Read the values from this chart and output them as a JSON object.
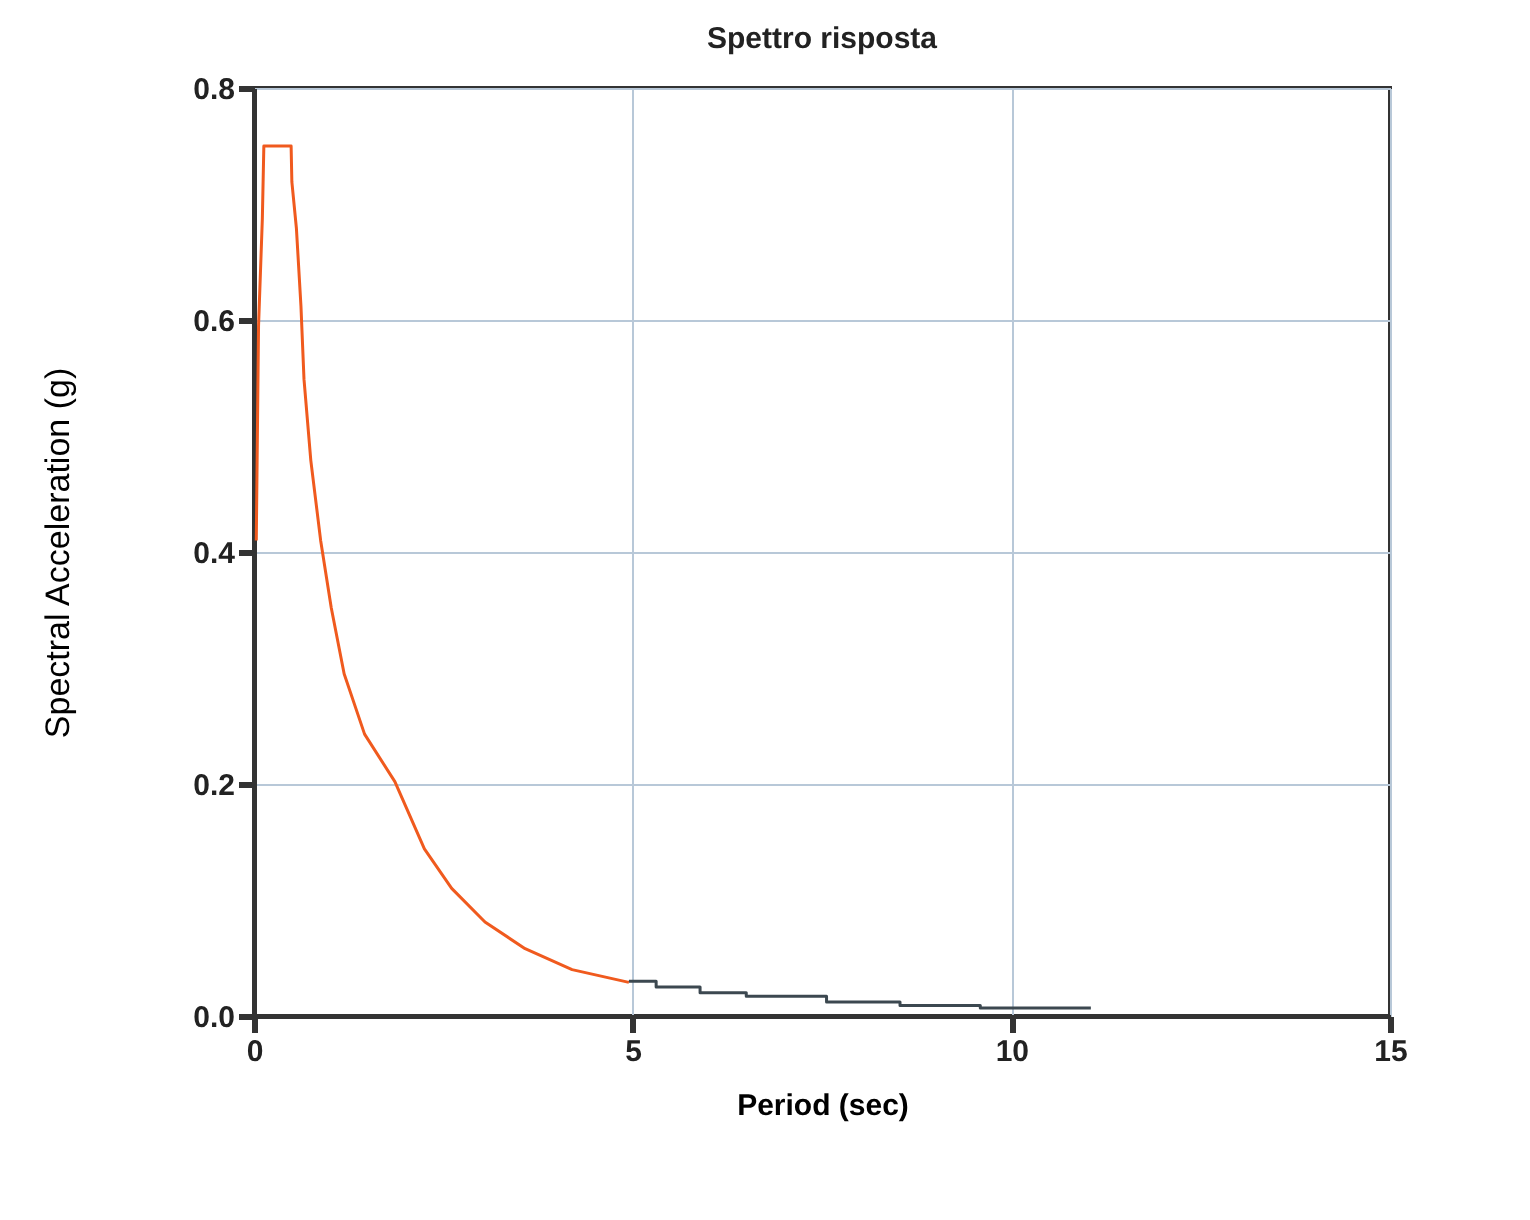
{
  "chart_data": {
    "type": "line",
    "title": "Spettro risposta",
    "xlabel": "Period (sec)",
    "ylabel": "Spectral Acceleration (g)",
    "xlim": [
      0,
      15
    ],
    "ylim": [
      0,
      0.8
    ],
    "xticks": [
      0,
      5,
      10,
      15
    ],
    "yticks": [
      {
        "value": 0,
        "label": "0.0"
      },
      {
        "value": 0.2,
        "label": "0.2"
      },
      {
        "value": 0.4,
        "label": "0.4"
      },
      {
        "value": 0.6,
        "label": "0.6"
      },
      {
        "value": 0.8,
        "label": "0.8"
      }
    ],
    "grid": true,
    "line_style": "solid",
    "series": [
      {
        "color": "#f05a1e",
        "x": [
          0.03,
          0.06,
          0.11,
          0.13,
          0.49,
          0.5,
          0.56,
          0.62,
          0.66,
          0.75,
          0.88,
          1.02,
          1.19,
          1.46,
          1.86,
          2.25,
          2.61,
          3.05,
          3.58,
          4.2,
          4.95
        ],
        "values": [
          0.41,
          0.595,
          0.687,
          0.75,
          0.75,
          0.719,
          0.679,
          0.612,
          0.549,
          0.479,
          0.41,
          0.352,
          0.295,
          0.243,
          0.202,
          0.144,
          0.11,
          0.081,
          0.058,
          0.04,
          0.029
        ]
      },
      {
        "color": "#3c4850",
        "type": "step",
        "x": [
          4.95,
          5.31,
          5.89,
          6.5,
          7.56,
          8.53,
          9.59,
          11.05
        ],
        "values": [
          0.03,
          0.025,
          0.02,
          0.017,
          0.012,
          0.009,
          0.007,
          0.007
        ]
      }
    ]
  }
}
